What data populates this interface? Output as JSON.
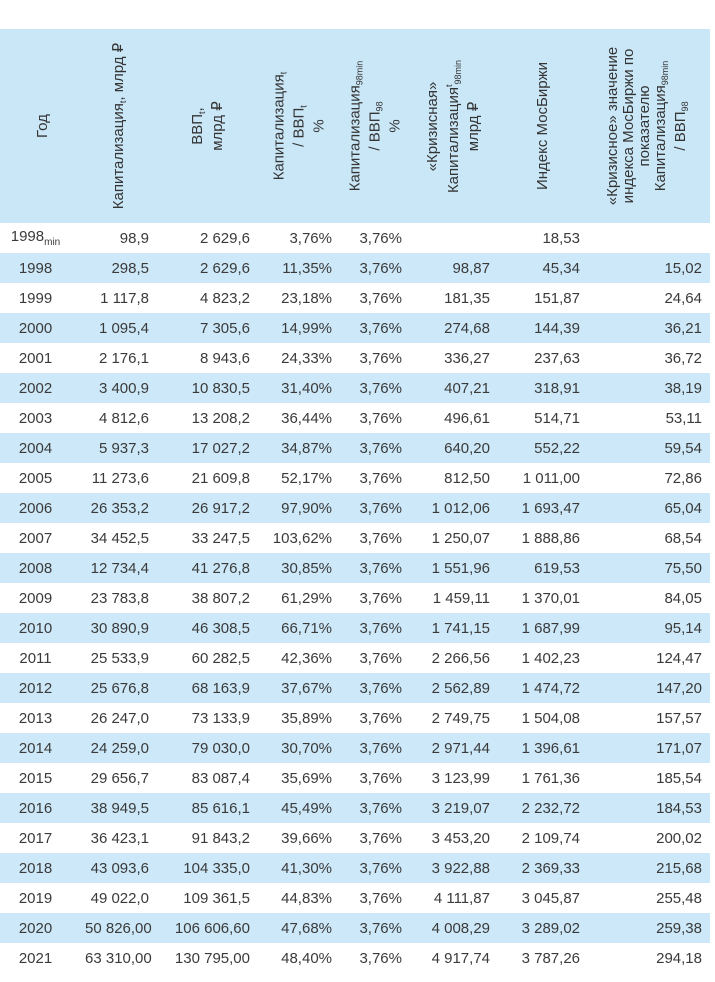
{
  "colors": {
    "header_bg": "#cae7f7",
    "stripe_bg": "#cde9f9",
    "text": "#3a3a3a"
  },
  "table": {
    "columns": [
      {
        "id": "year",
        "label_lines": [
          [
            {
              "t": "Год"
            }
          ]
        ]
      },
      {
        "id": "capitalization",
        "label_lines": [
          [
            {
              "t": "Капитализация"
            },
            {
              "sub": "t"
            },
            {
              "t": ", млрд ₽"
            }
          ]
        ]
      },
      {
        "id": "gdp",
        "label_lines": [
          [
            {
              "t": "ВВП"
            },
            {
              "sub": "t"
            },
            {
              "t": ","
            }
          ],
          [
            {
              "t": "млрд ₽"
            }
          ]
        ]
      },
      {
        "id": "cap-to-gdp",
        "label_lines": [
          [
            {
              "t": "Капитализация"
            },
            {
              "sub": "t"
            }
          ],
          [
            {
              "t": "/ ВВП"
            },
            {
              "sub": "t"
            }
          ],
          [
            {
              "t": "%"
            }
          ]
        ]
      },
      {
        "id": "cap98-to-gdp98",
        "label_lines": [
          [
            {
              "t": "Капитализация"
            },
            {
              "sub": "98min"
            }
          ],
          [
            {
              "t": "/ ВВП"
            },
            {
              "sub": "98"
            }
          ],
          [
            {
              "t": "%"
            }
          ]
        ]
      },
      {
        "id": "crisis-capitalization",
        "label_lines": [
          [
            {
              "t": "«Кризисная»"
            }
          ],
          [
            {
              "t": "Капитализация"
            },
            {
              "sup": "t"
            },
            {
              "sub": "98min"
            }
          ],
          [
            {
              "t": "млрд ₽"
            }
          ]
        ]
      },
      {
        "id": "moex-index",
        "label_lines": [
          [
            {
              "t": "Индекс МосБиржи"
            }
          ]
        ]
      },
      {
        "id": "crisis-moex-index",
        "label_lines": [
          [
            {
              "t": "«Кризисное» значение"
            }
          ],
          [
            {
              "t": "индекса МосБиржи по"
            }
          ],
          [
            {
              "t": "показателю"
            }
          ],
          [
            {
              "t": "Капитализация"
            },
            {
              "sub": "98min"
            }
          ],
          [
            {
              "t": "/ ВВП"
            },
            {
              "sub": "98"
            }
          ]
        ]
      }
    ],
    "rows": [
      {
        "year": "1998",
        "year_sub": "min",
        "values": [
          "98,9",
          "2 629,6",
          "3,76%",
          "3,76%",
          "",
          "18,53",
          ""
        ]
      },
      {
        "year": "1998",
        "values": [
          "298,5",
          "2 629,6",
          "11,35%",
          "3,76%",
          "98,87",
          "45,34",
          "15,02"
        ]
      },
      {
        "year": "1999",
        "values": [
          "1 117,8",
          "4 823,2",
          "23,18%",
          "3,76%",
          "181,35",
          "151,87",
          "24,64"
        ]
      },
      {
        "year": "2000",
        "values": [
          "1 095,4",
          "7 305,6",
          "14,99%",
          "3,76%",
          "274,68",
          "144,39",
          "36,21"
        ]
      },
      {
        "year": "2001",
        "values": [
          "2 176,1",
          "8 943,6",
          "24,33%",
          "3,76%",
          "336,27",
          "237,63",
          "36,72"
        ]
      },
      {
        "year": "2002",
        "values": [
          "3 400,9",
          "10 830,5",
          "31,40%",
          "3,76%",
          "407,21",
          "318,91",
          "38,19"
        ]
      },
      {
        "year": "2003",
        "values": [
          "4 812,6",
          "13 208,2",
          "36,44%",
          "3,76%",
          "496,61",
          "514,71",
          "53,11"
        ]
      },
      {
        "year": "2004",
        "values": [
          "5 937,3",
          "17 027,2",
          "34,87%",
          "3,76%",
          "640,20",
          "552,22",
          "59,54"
        ]
      },
      {
        "year": "2005",
        "values": [
          "11 273,6",
          "21 609,8",
          "52,17%",
          "3,76%",
          "812,50",
          "1 011,00",
          "72,86"
        ]
      },
      {
        "year": "2006",
        "values": [
          "26 353,2",
          "26 917,2",
          "97,90%",
          "3,76%",
          "1 012,06",
          "1 693,47",
          "65,04"
        ]
      },
      {
        "year": "2007",
        "values": [
          "34 452,5",
          "33 247,5",
          "103,62%",
          "3,76%",
          "1 250,07",
          "1 888,86",
          "68,54"
        ]
      },
      {
        "year": "2008",
        "values": [
          "12 734,4",
          "41 276,8",
          "30,85%",
          "3,76%",
          "1 551,96",
          "619,53",
          "75,50"
        ]
      },
      {
        "year": "2009",
        "values": [
          "23 783,8",
          "38 807,2",
          "61,29%",
          "3,76%",
          "1 459,11",
          "1 370,01",
          "84,05"
        ]
      },
      {
        "year": "2010",
        "values": [
          "30 890,9",
          "46 308,5",
          "66,71%",
          "3,76%",
          "1 741,15",
          "1 687,99",
          "95,14"
        ]
      },
      {
        "year": "2011",
        "values": [
          "25 533,9",
          "60 282,5",
          "42,36%",
          "3,76%",
          "2 266,56",
          "1 402,23",
          "124,47"
        ]
      },
      {
        "year": "2012",
        "values": [
          "25 676,8",
          "68 163,9",
          "37,67%",
          "3,76%",
          "2 562,89",
          "1 474,72",
          "147,20"
        ]
      },
      {
        "year": "2013",
        "values": [
          "26 247,0",
          "73 133,9",
          "35,89%",
          "3,76%",
          "2 749,75",
          "1 504,08",
          "157,57"
        ]
      },
      {
        "year": "2014",
        "values": [
          "24 259,0",
          "79 030,0",
          "30,70%",
          "3,76%",
          "2 971,44",
          "1 396,61",
          "171,07"
        ]
      },
      {
        "year": "2015",
        "values": [
          "29 656,7",
          "83 087,4",
          "35,69%",
          "3,76%",
          "3 123,99",
          "1 761,36",
          "185,54"
        ]
      },
      {
        "year": "2016",
        "values": [
          "38 949,5",
          "85 616,1",
          "45,49%",
          "3,76%",
          "3 219,07",
          "2 232,72",
          "184,53"
        ]
      },
      {
        "year": "2017",
        "values": [
          "36 423,1",
          "91 843,2",
          "39,66%",
          "3,76%",
          "3 453,20",
          "2 109,74",
          "200,02"
        ]
      },
      {
        "year": "2018",
        "values": [
          "43 093,6",
          "104 335,0",
          "41,30%",
          "3,76%",
          "3 922,88",
          "2 369,33",
          "215,68"
        ]
      },
      {
        "year": "2019",
        "values": [
          "49 022,0",
          "109 361,5",
          "44,83%",
          "3,76%",
          "4 111,87",
          "3 045,87",
          "255,48"
        ]
      },
      {
        "year": "2020",
        "values": [
          "50 826,00",
          "106 606,60",
          "47,68%",
          "3,76%",
          "4 008,29",
          "3 289,02",
          "259,38"
        ]
      },
      {
        "year": "2021",
        "values": [
          "63 310,00",
          "130 795,00",
          "48,40%",
          "3,76%",
          "4 917,74",
          "3 787,26",
          "294,18"
        ]
      }
    ]
  }
}
